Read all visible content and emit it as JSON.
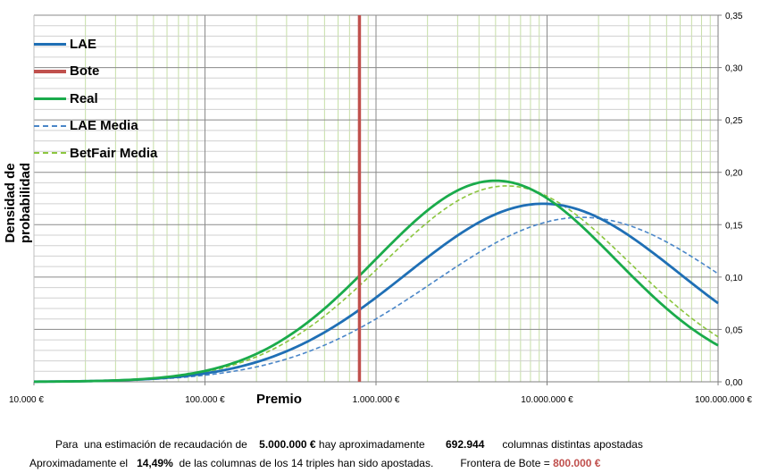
{
  "chart_data": {
    "type": "line",
    "x_scale": "log",
    "xlim": [
      10000,
      100000000
    ],
    "ylim": [
      0,
      0.35
    ],
    "xlabel": "Premio",
    "ylabel": "Densidad de probabilidad",
    "x_ticks": [
      "10.000 €",
      "100.000 €",
      "1.000.000 €",
      "10.000.000 €",
      "100.000.000 €"
    ],
    "y_ticks": [
      "0,00",
      "0,05",
      "0,10",
      "0,15",
      "0,20",
      "0,25",
      "0,30",
      "0,35"
    ],
    "y_axis_side": "right",
    "grid": true,
    "legend_position": "top-left",
    "vline": {
      "name": "Bote",
      "x": 800000,
      "color": "#c0504d"
    },
    "series": [
      {
        "name": "LAE",
        "color": "#1f6fb5",
        "dashed": false,
        "lognormal": {
          "peak_x": 9500000,
          "peak_y": 0.17,
          "sigma": 1.84
        }
      },
      {
        "name": "Real",
        "color": "#1aab4b",
        "dashed": false,
        "lognormal": {
          "peak_x": 5000000,
          "peak_y": 0.192,
          "sigma": 1.62
        }
      },
      {
        "name": "LAE Media",
        "color": "#4a86c8",
        "dashed": true,
        "lognormal": {
          "peak_x": 16000000,
          "peak_y": 0.157,
          "sigma": 2.0
        }
      },
      {
        "name": "BetFair Media",
        "color": "#8cc63f",
        "dashed": true,
        "lognormal": {
          "peak_x": 5800000,
          "peak_y": 0.187,
          "sigma": 1.66
        }
      }
    ],
    "legend_order": [
      "LAE",
      "Bote",
      "Real",
      "LAE Media",
      "BetFair Media"
    ]
  },
  "footer": {
    "line1_prefix": "Para  una estimación de recaudación de",
    "recaudacion": "5.000.000 €",
    "line1_mid": "hay aproximadamente",
    "columnas": "692.944",
    "line1_suffix": "columnas distintas apostadas",
    "line2_prefix": "Aproximadamente el",
    "porcentaje": "14,49%",
    "line2_mid": "de las columnas de los 14 triples han sido apostadas.",
    "frontera_label": "Frontera de Bote =",
    "frontera_value": "800.000 €"
  },
  "colors": {
    "lae": "#1f6fb5",
    "bote": "#c0504d",
    "real": "#1aab4b",
    "lae_media": "#4a86c8",
    "betfair_media": "#8cc63f"
  }
}
